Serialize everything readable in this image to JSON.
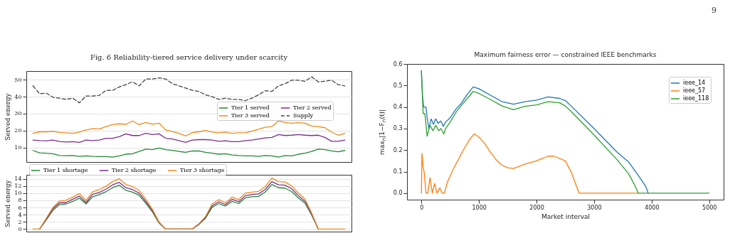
{
  "chart_data": [
    {
      "type": "line",
      "title": "Fig. 6  Reliability-tiered service delivery under scarcity",
      "ylabel": "Served energy",
      "categories": [
        null,
        null,
        null,
        null,
        null,
        null,
        null,
        null,
        null,
        null,
        null,
        null,
        null,
        null,
        null,
        null,
        null,
        null,
        null,
        null,
        null,
        null,
        null,
        null,
        null,
        null,
        null,
        null,
        null,
        null,
        null,
        null,
        null,
        null,
        null,
        null,
        null,
        null,
        null,
        null,
        null,
        null,
        null,
        null,
        null,
        null,
        null,
        null
      ],
      "ylim": [
        1.5,
        55.1
      ],
      "yticks": [
        10,
        20,
        30,
        40,
        50
      ],
      "grid": "y",
      "legend": "right",
      "tick_labels": "y",
      "series": [
        {
          "name": "Tier 1 served",
          "color": "#228833",
          "values": [
            8.3,
            6.9,
            6.7,
            6.4,
            5.3,
            5.2,
            5.3,
            4.8,
            5.1,
            4.8,
            4.7,
            4.7,
            4.4,
            5.1,
            6.1,
            6.4,
            7.7,
            9.1,
            8.8,
            9.7,
            8.8,
            8.4,
            7.7,
            7.2,
            8.0,
            8.0,
            7.2,
            6.7,
            6.1,
            6.4,
            5.6,
            5.3,
            5.1,
            5.1,
            4.8,
            5.3,
            5.1,
            4.4,
            5.3,
            5.1,
            6.1,
            6.7,
            7.7,
            9.1,
            8.8,
            8.0,
            7.5,
            8.3
          ]
        },
        {
          "name": "Tier 2 served",
          "color": "#7b2d8e",
          "values": [
            14.4,
            14.1,
            14.0,
            14.4,
            13.6,
            13.3,
            13.5,
            13.1,
            14.4,
            14.1,
            14.4,
            15.5,
            15.5,
            16.4,
            18.1,
            17.1,
            17.1,
            18.4,
            17.7,
            18.1,
            15.5,
            15.1,
            14.1,
            13.1,
            14.4,
            14.7,
            14.7,
            14.4,
            13.7,
            14.0,
            13.5,
            13.5,
            14.1,
            14.4,
            15.1,
            15.7,
            16.0,
            17.7,
            17.1,
            17.3,
            17.7,
            17.3,
            17.1,
            17.3,
            16.0,
            13.7,
            13.7,
            14.4
          ]
        },
        {
          "name": "Tier 3 served",
          "color": "#ee8a1a",
          "values": [
            18.4,
            19.3,
            19.3,
            19.6,
            18.9,
            18.7,
            18.4,
            19.1,
            20.4,
            21.1,
            20.9,
            22.4,
            23.5,
            24.0,
            23.7,
            25.7,
            23.5,
            24.8,
            23.7,
            24.4,
            20.4,
            19.5,
            18.4,
            16.8,
            18.8,
            19.3,
            20.1,
            19.1,
            18.7,
            19.1,
            18.4,
            18.7,
            18.7,
            19.7,
            20.8,
            22.0,
            22.4,
            25.7,
            24.8,
            24.4,
            24.7,
            24.4,
            22.7,
            22.4,
            21.7,
            19.1,
            17.3,
            18.4
          ]
        },
        {
          "name": "Supply",
          "color": "#444444",
          "line_style": "dashed",
          "values": [
            46.4,
            41.7,
            42.1,
            39.7,
            39.1,
            38.4,
            39.1,
            36.4,
            40.4,
            40.4,
            40.8,
            43.7,
            43.7,
            45.7,
            47.1,
            48.8,
            46.4,
            50.4,
            50.4,
            51.1,
            50.4,
            47.7,
            46.4,
            45.1,
            43.7,
            43.1,
            41.1,
            40.0,
            38.4,
            39.1,
            38.4,
            38.4,
            37.7,
            39.1,
            41.1,
            43.5,
            43.1,
            46.4,
            47.7,
            49.7,
            49.7,
            49.1,
            51.7,
            48.7,
            49.1,
            49.7,
            47.1,
            46.4
          ]
        }
      ]
    },
    {
      "type": "line",
      "ylabel": "Served energy",
      "categories": [
        null,
        null,
        null,
        null,
        null,
        null,
        null,
        null,
        null,
        null,
        null,
        null,
        null,
        null,
        null,
        null,
        null,
        null,
        null,
        null,
        null,
        null,
        null,
        null,
        null,
        null,
        null,
        null,
        null,
        null,
        null,
        null,
        null,
        null,
        null,
        null,
        null,
        null,
        null,
        null,
        null,
        null,
        null,
        null,
        null,
        null,
        null,
        null
      ],
      "ylim": [
        -0.7,
        15.1
      ],
      "yticks": [
        0,
        2,
        4,
        6,
        8,
        10,
        12,
        14
      ],
      "grid": "y",
      "legend": "top",
      "tick_labels": "y",
      "series": [
        {
          "name": "Tier 1 shortage",
          "color": "#228833",
          "values": [
            null,
            0,
            2.6,
            5.2,
            6.8,
            7.0,
            7.7,
            8.6,
            7.0,
            9.0,
            9.6,
            10.4,
            11.5,
            12.2,
            10.8,
            10.3,
            9.4,
            7.2,
            4.8,
            1.7,
            0,
            null,
            null,
            null,
            0,
            1.3,
            3.0,
            6.1,
            7.1,
            6.4,
            7.7,
            7.1,
            8.7,
            9.0,
            9.1,
            10.3,
            12.4,
            11.5,
            11.4,
            10.4,
            8.7,
            7.2,
            3.9,
            0,
            null,
            null,
            null,
            null
          ]
        },
        {
          "name": "Tier 2 shortage",
          "color": "#7b2d8e",
          "values": [
            null,
            0,
            2.8,
            5.6,
            7.3,
            7.4,
            8.3,
            9.2,
            7.4,
            9.7,
            10.2,
            11.1,
            12.3,
            13.0,
            11.5,
            11.0,
            10.0,
            7.7,
            5.1,
            1.9,
            0,
            null,
            null,
            null,
            0,
            1.4,
            3.3,
            6.5,
            7.6,
            6.8,
            8.3,
            7.6,
            9.3,
            9.6,
            9.8,
            11.0,
            13.2,
            12.3,
            12.2,
            11.2,
            9.3,
            7.7,
            4.2,
            0,
            null,
            null,
            null,
            null
          ]
        },
        {
          "name": "Tier 3 shortage",
          "color": "#ee8a1a",
          "values": [
            0,
            0,
            3.0,
            6.0,
            7.8,
            8.0,
            8.9,
            9.9,
            8.0,
            10.4,
            11.0,
            11.9,
            13.2,
            14.0,
            12.4,
            11.8,
            10.8,
            8.3,
            5.5,
            2.0,
            0,
            0,
            0,
            0,
            0,
            1.5,
            3.5,
            7.0,
            8.2,
            7.3,
            8.9,
            8.2,
            10.0,
            10.3,
            10.5,
            11.8,
            14.2,
            13.2,
            13.1,
            12.0,
            10.0,
            8.3,
            4.5,
            0,
            0,
            0,
            0,
            0
          ]
        }
      ]
    },
    {
      "type": "line",
      "title": "Maximum fairness error — constrained IEEE benchmarks",
      "xlabel": "Market interval",
      "ylabel": "max$_{n}$|1−F$_{n}$(t)|",
      "xlim": [
        -250,
        5250
      ],
      "ylim": [
        -0.03,
        0.6
      ],
      "xticks": [
        0,
        1000,
        2000,
        3000,
        4000,
        5000
      ],
      "yticks": [
        {
          "value": 0,
          "label": "0.0"
        },
        0.1,
        0.2,
        0.3,
        0.4,
        0.5,
        0.6
      ],
      "legend": "top right",
      "annotations": [
        "9"
      ],
      "series": [
        {
          "name": "ieee_14",
          "color": "#1f77b4",
          "x": [
            0,
            20,
            40,
            80,
            100,
            130,
            170,
            210,
            250,
            290,
            340,
            380,
            420,
            500,
            600,
            700,
            800,
            900,
            1000,
            1200,
            1400,
            1600,
            1800,
            2000,
            2200,
            2400,
            2500,
            2600,
            3000,
            3400,
            3600,
            3800,
            3900,
            3940
          ],
          "values": [
            0.57,
            0.45,
            0.4,
            0.4,
            0.35,
            0.3,
            0.345,
            0.32,
            0.345,
            0.325,
            0.335,
            0.31,
            0.33,
            0.35,
            0.39,
            0.42,
            0.46,
            0.493,
            0.485,
            0.455,
            0.425,
            0.413,
            0.425,
            0.432,
            0.447,
            0.44,
            0.43,
            0.405,
            0.3,
            0.19,
            0.145,
            0.07,
            0.03,
            0
          ]
        },
        {
          "name": "ieee_57",
          "color": "#ff7f0e",
          "x": [
            0,
            10,
            30,
            50,
            80,
            110,
            150,
            190,
            230,
            270,
            320,
            360,
            400,
            450,
            550,
            650,
            750,
            850,
            920,
            1000,
            1100,
            1200,
            1300,
            1400,
            1500,
            1600,
            1800,
            2000,
            2200,
            2300,
            2500,
            2600,
            2740,
            3770
          ],
          "values": [
            0,
            0.185,
            0.12,
            0.095,
            0,
            0,
            0.072,
            0,
            0.045,
            0,
            0.025,
            0,
            0,
            0.05,
            0.11,
            0.16,
            0.21,
            0.255,
            0.275,
            0.26,
            0.23,
            0.19,
            0.155,
            0.13,
            0.118,
            0.115,
            0.135,
            0.15,
            0.172,
            0.172,
            0.15,
            0.1,
            0,
            0
          ]
        },
        {
          "name": "ieee_118",
          "color": "#2ca02c",
          "x": [
            0,
            30,
            60,
            100,
            150,
            200,
            250,
            300,
            340,
            390,
            420,
            500,
            600,
            700,
            800,
            900,
            1000,
            1200,
            1400,
            1600,
            1800,
            2000,
            2200,
            2400,
            2500,
            2600,
            3000,
            3400,
            3600,
            3700,
            3770,
            5000
          ],
          "values": [
            0.565,
            0.37,
            0.37,
            0.265,
            0.315,
            0.29,
            0.315,
            0.29,
            0.3,
            0.275,
            0.3,
            0.33,
            0.375,
            0.41,
            0.44,
            0.473,
            0.463,
            0.435,
            0.405,
            0.388,
            0.403,
            0.41,
            0.425,
            0.42,
            0.405,
            0.38,
            0.27,
            0.155,
            0.09,
            0.04,
            0,
            0
          ]
        }
      ]
    }
  ]
}
